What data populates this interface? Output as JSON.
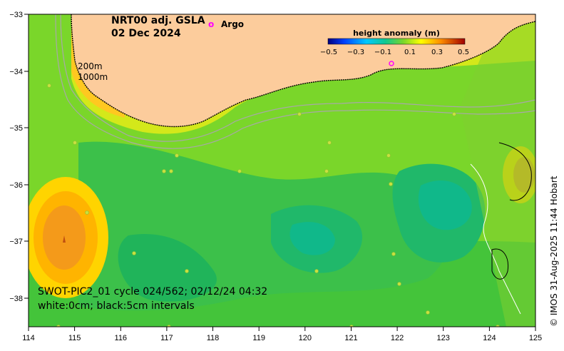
{
  "title": {
    "line1": "NRT00 adj. GSLA",
    "line2": "02 Dec 2024"
  },
  "legend": {
    "argo_marker": "o",
    "argo_label": "Argo"
  },
  "colorbar": {
    "title": "height anomaly (m)",
    "ticks": [
      "−0.5",
      "−0.3",
      "−0.1",
      "0.1",
      "0.3",
      "0.5"
    ]
  },
  "contour_labels": {
    "depth1": "200m",
    "depth2": "1000m"
  },
  "caption": {
    "line1": "SWOT-PIC2_01 cycle 024/562; 02/12/24 04:32",
    "line2": "white:0cm; black:5cm intervals"
  },
  "credit": "© IMOS 31-Aug-2025 11:44 Hobart",
  "axes": {
    "x_ticks": [
      "114",
      "115",
      "116",
      "117",
      "118",
      "119",
      "120",
      "121",
      "122",
      "123",
      "124",
      "125"
    ],
    "y_ticks": [
      "−33",
      "−34",
      "−35",
      "−36",
      "−37",
      "−38"
    ]
  },
  "colors": {
    "land": "#fccc9c",
    "ocean_base": "#7ad62a",
    "argo": "#ff00ff"
  }
}
